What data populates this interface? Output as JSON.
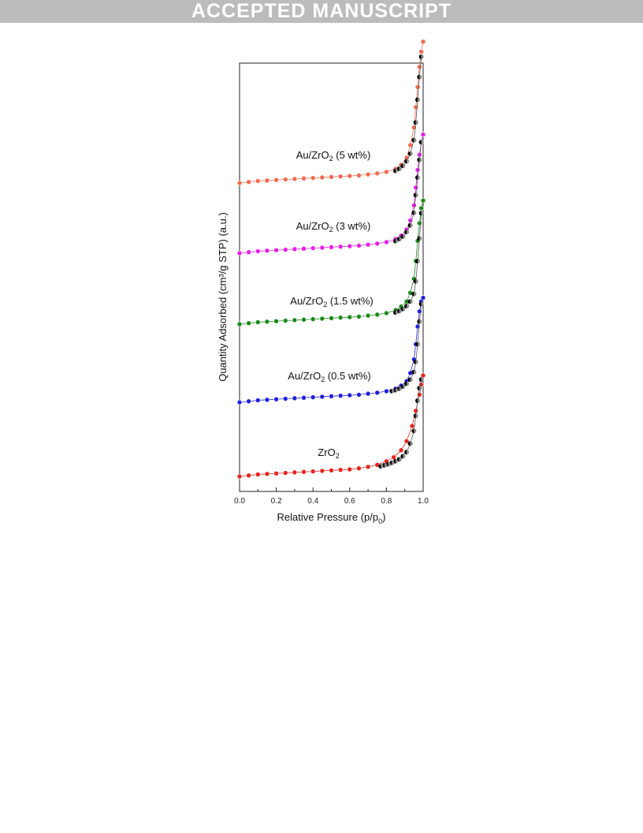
{
  "banner": {
    "text": "ACCEPTED MANUSCRIPT"
  },
  "chart_data": {
    "type": "scatter",
    "title": "",
    "xlabel": "Relative Pressure (p/p",
    "xlabel_sub": "0",
    "xlabel_end": ")",
    "ylabel": "Quantity Adsorbed (cm³/g STP) (a.u.)",
    "xlim": [
      0.0,
      1.0
    ],
    "x_ticks": [
      "0.0",
      "0.2",
      "0.4",
      "0.6",
      "0.8",
      "1.0"
    ],
    "y_ticks": [],
    "grid": false,
    "legend": "labels placed beside each curve",
    "series": [
      {
        "name": "ZrO2",
        "label_parts": [
          "ZrO",
          "2",
          ""
        ],
        "color": "#e8231c",
        "desorption_color": "#000000",
        "offset": 0,
        "adsorption": {
          "x": [
            0.0,
            0.05,
            0.1,
            0.15,
            0.2,
            0.25,
            0.3,
            0.35,
            0.4,
            0.45,
            0.5,
            0.55,
            0.6,
            0.65,
            0.7,
            0.75,
            0.8,
            0.84,
            0.88,
            0.91,
            0.94,
            0.96,
            0.98,
            0.99,
            1.0
          ],
          "y": [
            0.0,
            0.02,
            0.04,
            0.05,
            0.06,
            0.07,
            0.08,
            0.09,
            0.1,
            0.11,
            0.12,
            0.13,
            0.14,
            0.16,
            0.19,
            0.23,
            0.3,
            0.38,
            0.52,
            0.7,
            1.0,
            1.3,
            1.62,
            1.82,
            2.0
          ]
        },
        "desorption": {
          "x": [
            0.99,
            0.98,
            0.97,
            0.96,
            0.95,
            0.93,
            0.91,
            0.89,
            0.87,
            0.85,
            0.83,
            0.81,
            0.79,
            0.77
          ],
          "y": [
            1.92,
            1.75,
            1.5,
            1.2,
            0.9,
            0.65,
            0.48,
            0.4,
            0.34,
            0.3,
            0.27,
            0.24,
            0.22,
            0.2
          ]
        }
      },
      {
        "name": "Au/ZrO2 (0.5 wt%)",
        "label_parts": [
          "Au/ZrO",
          "2",
          " (0.5 wt%)"
        ],
        "color": "#1f1fe0",
        "desorption_color": "#000000",
        "offset": 1,
        "adsorption": {
          "x": [
            0.0,
            0.05,
            0.1,
            0.15,
            0.2,
            0.25,
            0.3,
            0.35,
            0.4,
            0.45,
            0.5,
            0.55,
            0.6,
            0.65,
            0.7,
            0.75,
            0.8,
            0.85,
            0.88,
            0.91,
            0.93,
            0.95,
            0.96,
            0.97,
            0.98,
            0.99,
            1.0
          ],
          "y": [
            0.0,
            0.02,
            0.04,
            0.05,
            0.06,
            0.07,
            0.08,
            0.09,
            0.1,
            0.11,
            0.12,
            0.13,
            0.14,
            0.15,
            0.17,
            0.19,
            0.22,
            0.27,
            0.33,
            0.42,
            0.58,
            0.85,
            1.15,
            1.5,
            1.8,
            2.0,
            2.07
          ]
        },
        "desorption": {
          "x": [
            0.99,
            0.98,
            0.97,
            0.96,
            0.95,
            0.93,
            0.91,
            0.89,
            0.87,
            0.85,
            0.83
          ],
          "y": [
            1.95,
            1.6,
            1.15,
            0.8,
            0.6,
            0.45,
            0.37,
            0.31,
            0.27,
            0.24,
            0.22
          ]
        }
      },
      {
        "name": "Au/ZrO2 (1.5 wt%)",
        "label_parts": [
          "Au/ZrO",
          "2",
          " (1.5 wt%)"
        ],
        "color": "#188a18",
        "desorption_color": "#000000",
        "offset": 2,
        "adsorption": {
          "x": [
            0.0,
            0.05,
            0.1,
            0.15,
            0.2,
            0.25,
            0.3,
            0.35,
            0.4,
            0.45,
            0.5,
            0.55,
            0.6,
            0.65,
            0.7,
            0.75,
            0.8,
            0.85,
            0.88,
            0.91,
            0.93,
            0.95,
            0.96,
            0.97,
            0.98,
            0.99,
            1.0
          ],
          "y": [
            0.0,
            0.02,
            0.04,
            0.05,
            0.06,
            0.07,
            0.08,
            0.09,
            0.1,
            0.11,
            0.12,
            0.13,
            0.14,
            0.15,
            0.17,
            0.19,
            0.22,
            0.28,
            0.35,
            0.45,
            0.62,
            0.9,
            1.25,
            1.65,
            2.0,
            2.3,
            2.45
          ]
        },
        "desorption": {
          "x": [
            0.99,
            0.98,
            0.97,
            0.96,
            0.95,
            0.93,
            0.91,
            0.89,
            0.87,
            0.85
          ],
          "y": [
            2.2,
            1.7,
            1.25,
            0.85,
            0.6,
            0.45,
            0.36,
            0.3,
            0.26,
            0.23
          ]
        }
      },
      {
        "name": "Au/ZrO2 (3 wt%)",
        "label_parts": [
          "Au/ZrO",
          "2",
          " (3 wt%)"
        ],
        "color": "#e81ee8",
        "desorption_color": "#000000",
        "offset": 3,
        "adsorption": {
          "x": [
            0.0,
            0.05,
            0.1,
            0.15,
            0.2,
            0.25,
            0.3,
            0.35,
            0.4,
            0.45,
            0.5,
            0.55,
            0.6,
            0.65,
            0.7,
            0.75,
            0.8,
            0.85,
            0.88,
            0.91,
            0.93,
            0.95,
            0.96,
            0.97,
            0.98,
            0.99,
            1.0
          ],
          "y": [
            0.0,
            0.02,
            0.04,
            0.05,
            0.06,
            0.07,
            0.08,
            0.09,
            0.1,
            0.11,
            0.12,
            0.13,
            0.14,
            0.15,
            0.17,
            0.19,
            0.22,
            0.28,
            0.35,
            0.47,
            0.65,
            0.95,
            1.3,
            1.65,
            1.95,
            2.2,
            2.35
          ]
        },
        "desorption": {
          "x": [
            0.99,
            0.98,
            0.97,
            0.96,
            0.95,
            0.93,
            0.91,
            0.89,
            0.87,
            0.85
          ],
          "y": [
            2.2,
            1.85,
            1.5,
            1.15,
            0.8,
            0.55,
            0.42,
            0.33,
            0.28,
            0.24
          ]
        }
      },
      {
        "name": "Au/ZrO2 (5 wt%)",
        "label_parts": [
          "Au/ZrO",
          "2",
          " (5 wt%)"
        ],
        "color": "#f26a4f",
        "desorption_color": "#000000",
        "offset": 4,
        "adsorption": {
          "x": [
            0.0,
            0.05,
            0.1,
            0.15,
            0.2,
            0.25,
            0.3,
            0.35,
            0.4,
            0.45,
            0.5,
            0.55,
            0.6,
            0.65,
            0.7,
            0.75,
            0.8,
            0.85,
            0.88,
            0.91,
            0.93,
            0.95,
            0.96,
            0.97,
            0.98,
            0.99,
            1.0
          ],
          "y": [
            0.0,
            0.02,
            0.04,
            0.05,
            0.06,
            0.07,
            0.08,
            0.09,
            0.1,
            0.11,
            0.12,
            0.13,
            0.14,
            0.15,
            0.17,
            0.19,
            0.22,
            0.28,
            0.36,
            0.5,
            0.75,
            1.1,
            1.5,
            1.9,
            2.3,
            2.6,
            2.8
          ]
        },
        "desorption": {
          "x": [
            0.99,
            0.98,
            0.97,
            0.96,
            0.95,
            0.93,
            0.91,
            0.89,
            0.87,
            0.85
          ],
          "y": [
            2.5,
            2.1,
            1.65,
            1.2,
            0.85,
            0.58,
            0.43,
            0.34,
            0.28,
            0.24
          ]
        }
      }
    ]
  }
}
